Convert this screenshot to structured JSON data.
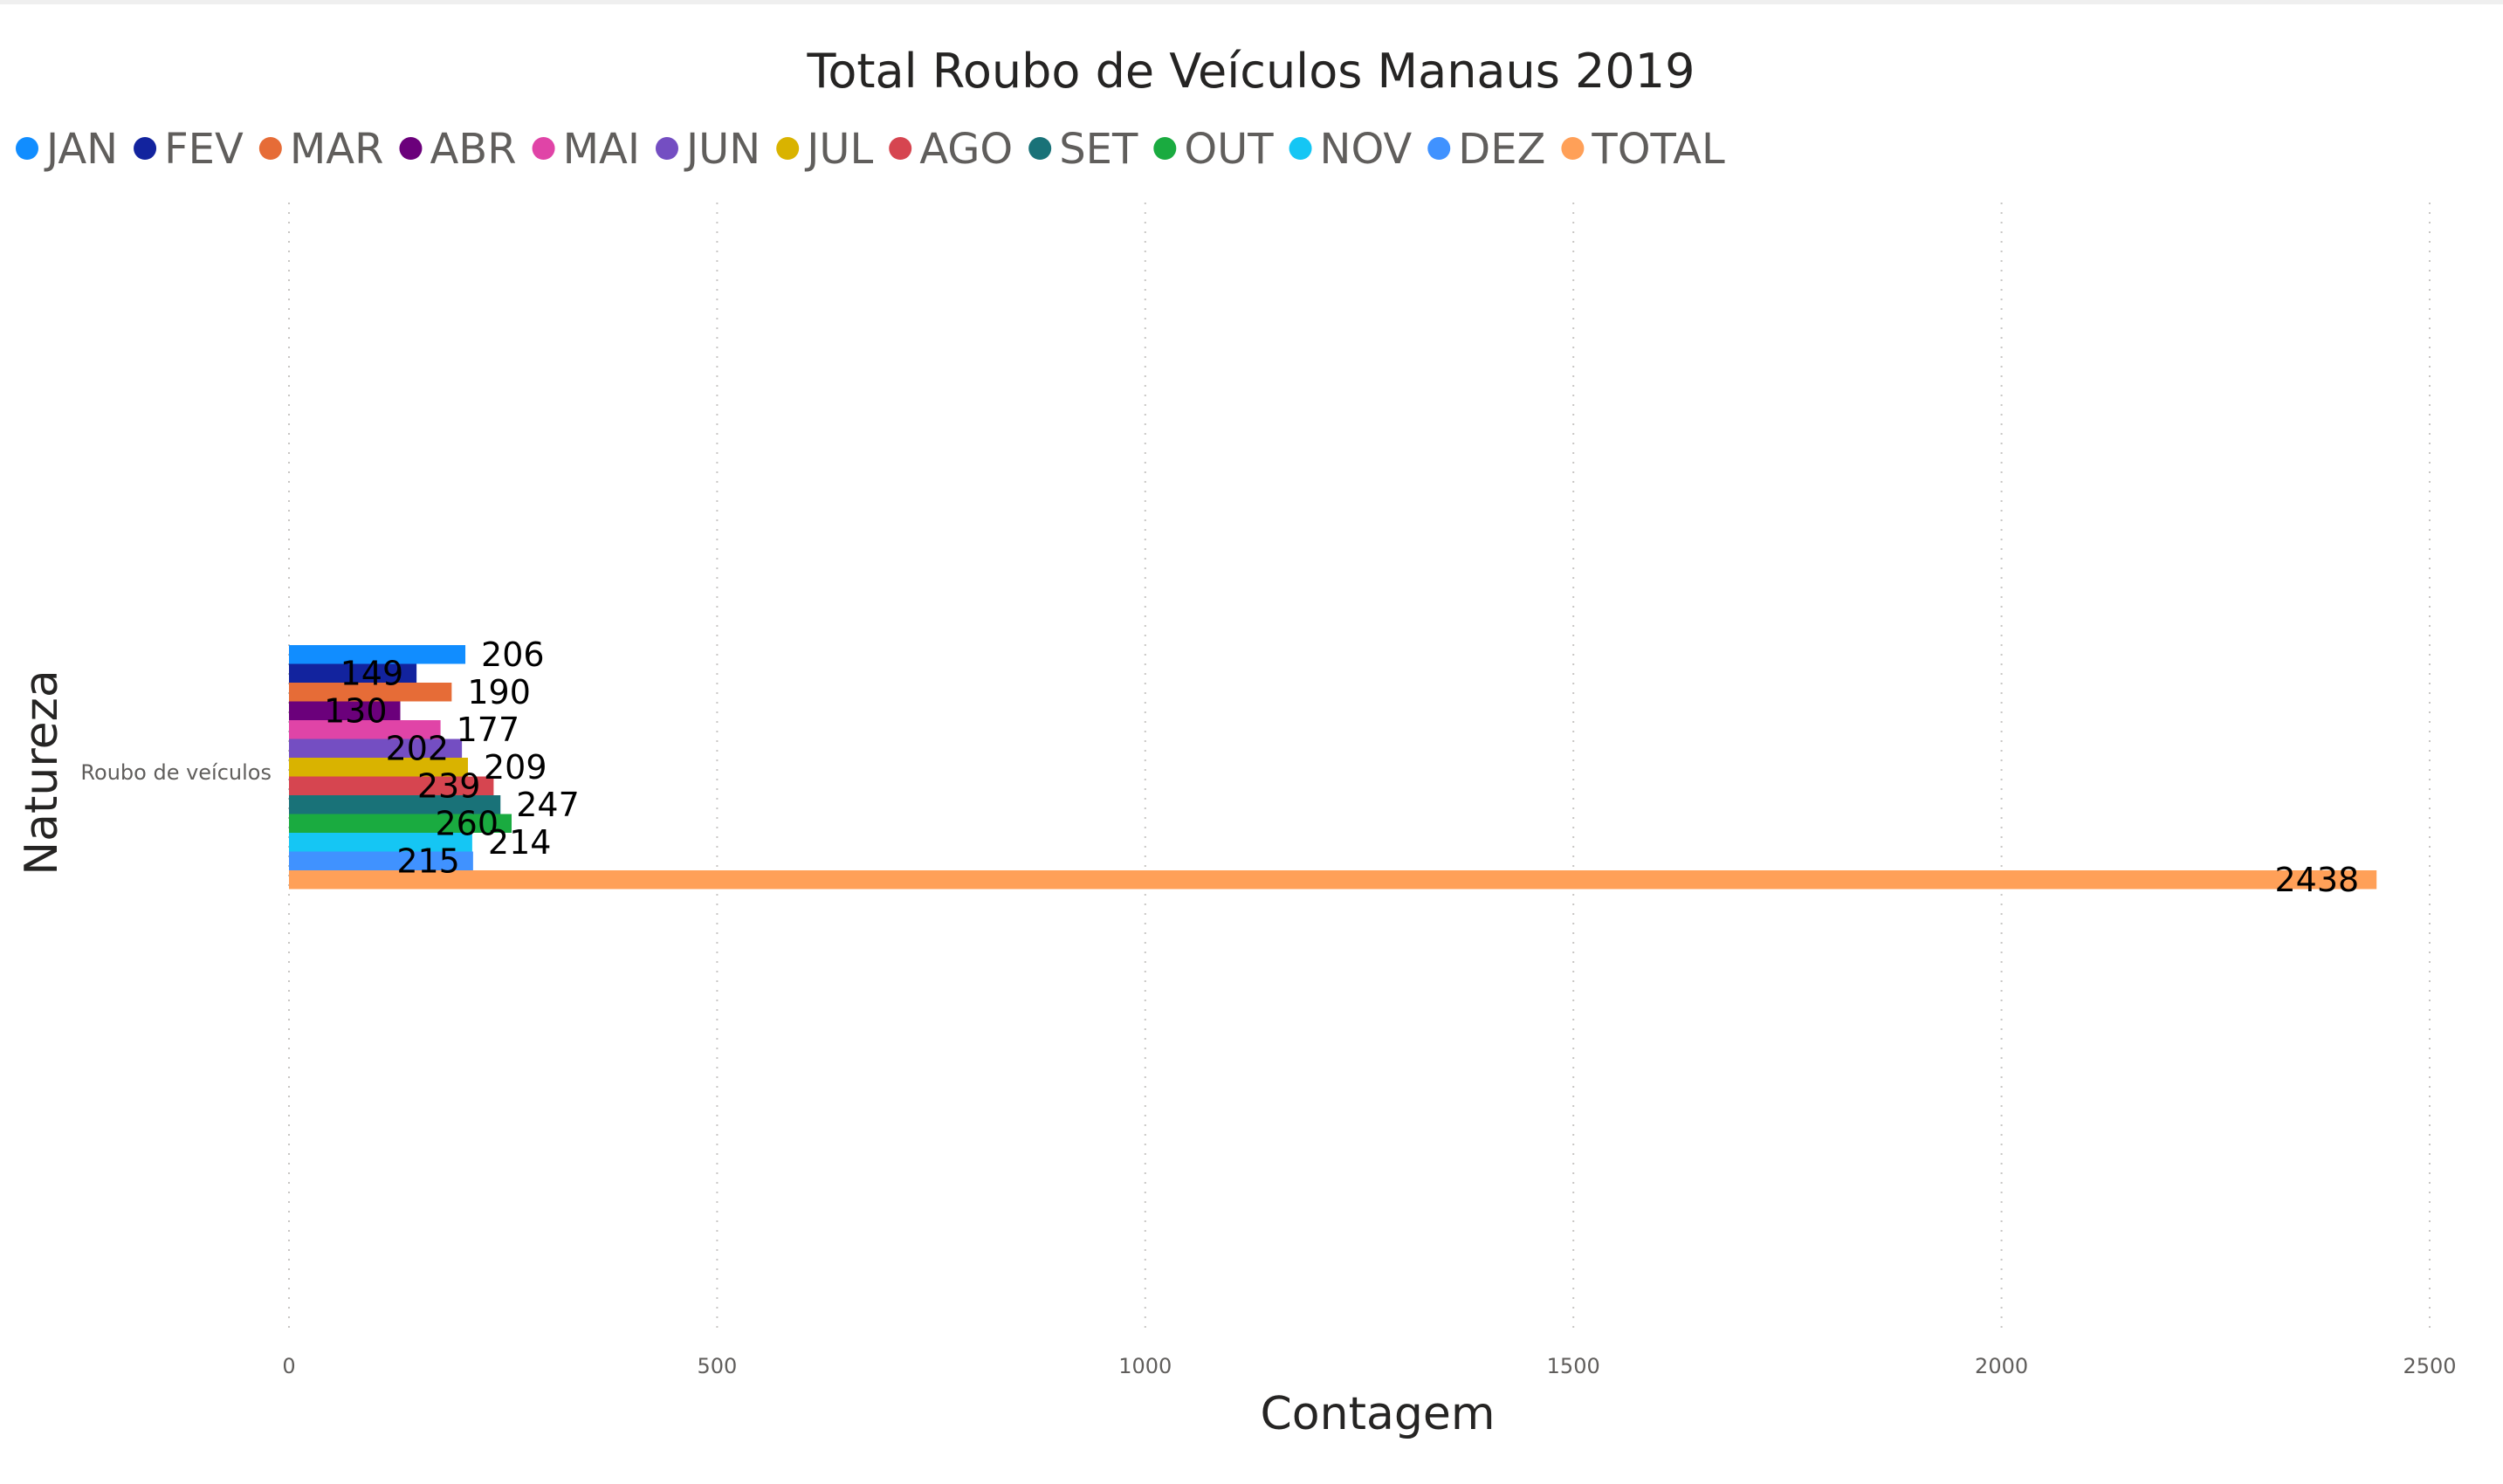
{
  "chart_data": {
    "type": "bar",
    "orientation": "horizontal",
    "title": "Total Roubo de Veículos Manaus 2019",
    "xlabel": "Contagem",
    "ylabel": "Natureza",
    "categories": [
      "Roubo de veículos"
    ],
    "xlim": [
      0,
      2500
    ],
    "xticks": [
      "0",
      "500",
      "1000",
      "1500",
      "2000",
      "2500"
    ],
    "grid": true,
    "legend_position": "top-left",
    "series": [
      {
        "name": "JAN",
        "color": "#118dff",
        "values": [
          206
        ]
      },
      {
        "name": "FEV",
        "color": "#12239e",
        "values": [
          149
        ]
      },
      {
        "name": "MAR",
        "color": "#e66c37",
        "values": [
          190
        ]
      },
      {
        "name": "ABR",
        "color": "#6b007b",
        "values": [
          130
        ]
      },
      {
        "name": "MAI",
        "color": "#e044a7",
        "values": [
          177
        ]
      },
      {
        "name": "JUN",
        "color": "#744ec2",
        "values": [
          202
        ]
      },
      {
        "name": "JUL",
        "color": "#d9b300",
        "values": [
          209
        ]
      },
      {
        "name": "AGO",
        "color": "#d64550",
        "values": [
          239
        ]
      },
      {
        "name": "SET",
        "color": "#197278",
        "values": [
          247
        ]
      },
      {
        "name": "OUT",
        "color": "#1aab40",
        "values": [
          260
        ]
      },
      {
        "name": "NOV",
        "color": "#15c6f4",
        "values": [
          214
        ]
      },
      {
        "name": "DEZ",
        "color": "#4092ff",
        "values": [
          215
        ]
      },
      {
        "name": "TOTAL",
        "color": "#ffa058",
        "values": [
          2438
        ]
      }
    ]
  }
}
